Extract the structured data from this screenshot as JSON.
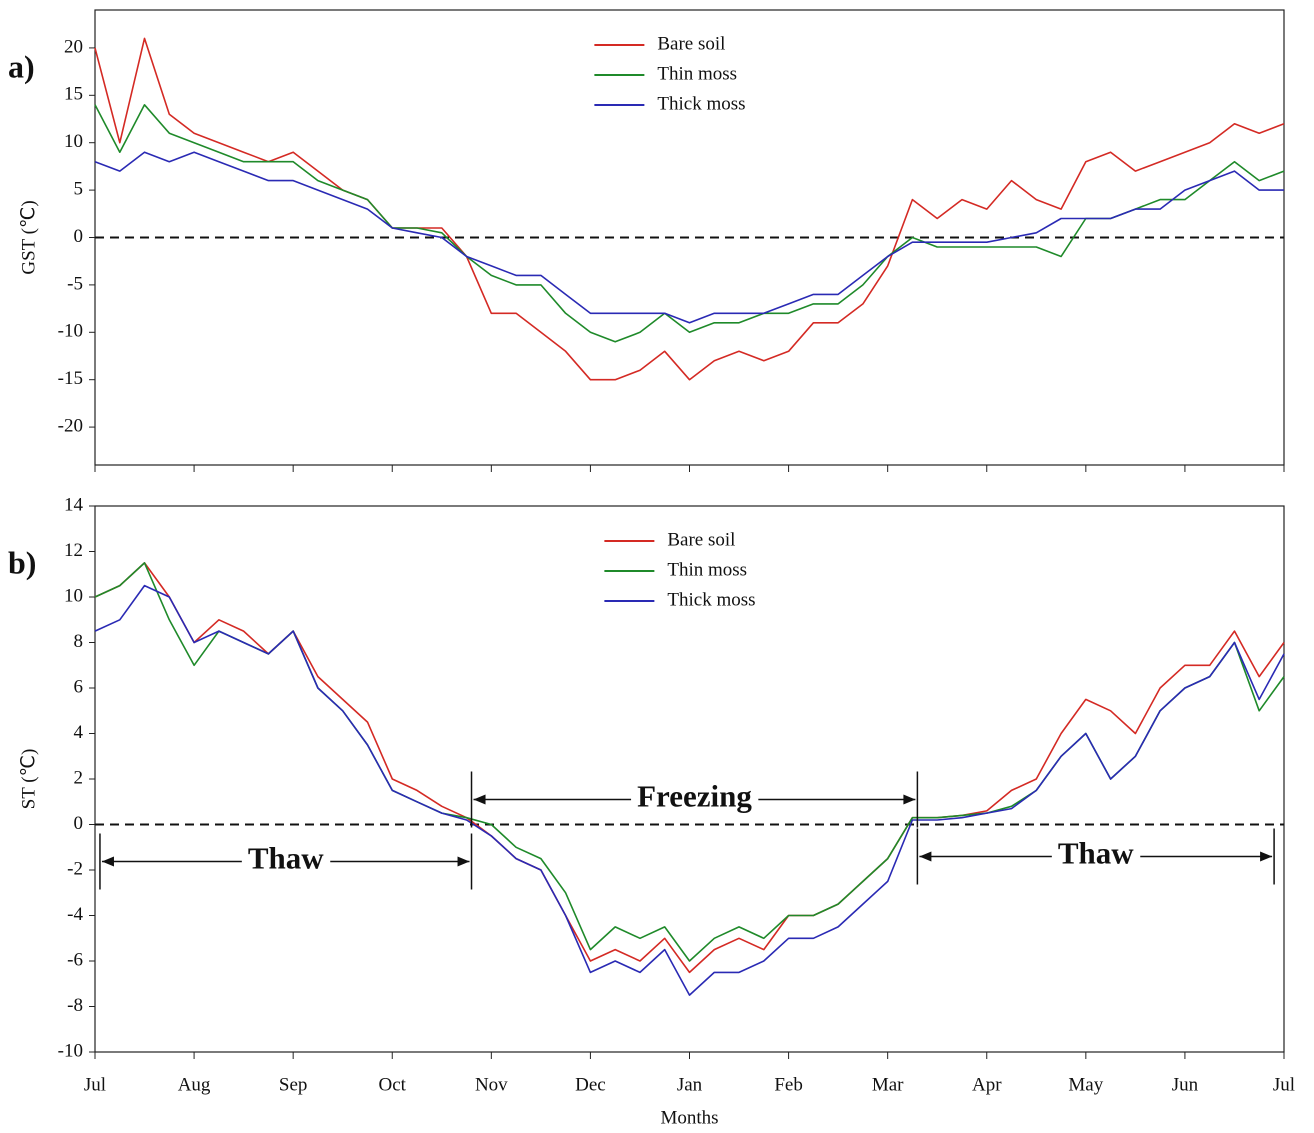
{
  "chart_data": [
    {
      "type": "line",
      "panel_label": "a)",
      "ylabel": "GST (℃)",
      "x": [
        0,
        0.25,
        0.5,
        0.75,
        1,
        1.25,
        1.5,
        1.75,
        2,
        2.25,
        2.5,
        2.75,
        3,
        3.25,
        3.5,
        3.75,
        4,
        4.25,
        4.5,
        4.75,
        5,
        5.25,
        5.5,
        5.75,
        6,
        6.25,
        6.5,
        6.75,
        7,
        7.25,
        7.5,
        7.75,
        8,
        8.25,
        8.5,
        8.75,
        9,
        9.25,
        9.5,
        9.75,
        10,
        10.25,
        10.5,
        10.75,
        11,
        11.25,
        11.5,
        11.75,
        12
      ],
      "xlim": [
        0,
        12
      ],
      "xticks": [
        0,
        1,
        2,
        3,
        4,
        5,
        6,
        7,
        8,
        9,
        10,
        11,
        12
      ],
      "show_xtick_labels": false,
      "ylim": [
        -24,
        24
      ],
      "yticks": [
        -20,
        -15,
        -10,
        -5,
        0,
        5,
        10,
        15,
        20
      ],
      "reference_line": 0,
      "legend_position": "upper center",
      "series": [
        {
          "name": "Bare soil",
          "color": "#d42a24",
          "values": [
            20,
            10,
            21,
            13,
            11,
            10,
            9,
            8,
            9,
            7,
            5,
            4,
            1,
            1,
            1,
            -2,
            -8,
            -8,
            -10,
            -12,
            -15,
            -15,
            -14,
            -12,
            -15,
            -13,
            -12,
            -13,
            -12,
            -9,
            -9,
            -7,
            -3,
            4,
            2,
            4,
            3,
            6,
            4,
            3,
            8,
            9,
            7,
            8,
            9,
            10,
            12,
            11,
            12
          ]
        },
        {
          "name": "Thin moss",
          "color": "#1f8a2a",
          "values": [
            14,
            9,
            14,
            11,
            10,
            9,
            8,
            8,
            8,
            6,
            5,
            4,
            1,
            1,
            0.5,
            -2,
            -4,
            -5,
            -5,
            -8,
            -10,
            -11,
            -10,
            -8,
            -10,
            -9,
            -9,
            -8,
            -8,
            -7,
            -7,
            -5,
            -2,
            0,
            -1,
            -1,
            -1,
            -1,
            -1,
            -2,
            2,
            2,
            3,
            4,
            4,
            6,
            8,
            6,
            7
          ]
        },
        {
          "name": "Thick moss",
          "color": "#2a2ab4",
          "values": [
            8,
            7,
            9,
            8,
            9,
            8,
            7,
            6,
            6,
            5,
            4,
            3,
            1,
            0.5,
            0,
            -2,
            -3,
            -4,
            -4,
            -6,
            -8,
            -8,
            -8,
            -8,
            -9,
            -8,
            -8,
            -8,
            -7,
            -6,
            -6,
            -4,
            -2,
            -0.5,
            -0.5,
            -0.5,
            -0.5,
            0,
            0.5,
            2,
            2,
            2,
            3,
            3,
            5,
            6,
            7,
            5,
            5
          ]
        }
      ]
    },
    {
      "type": "line",
      "panel_label": "b)",
      "ylabel": "ST (℃)",
      "xlabel": "Months",
      "x": [
        0,
        0.25,
        0.5,
        0.75,
        1,
        1.25,
        1.5,
        1.75,
        2,
        2.25,
        2.5,
        2.75,
        3,
        3.25,
        3.5,
        3.75,
        4,
        4.25,
        4.5,
        4.75,
        5,
        5.25,
        5.5,
        5.75,
        6,
        6.25,
        6.5,
        6.75,
        7,
        7.25,
        7.5,
        7.75,
        8,
        8.25,
        8.5,
        8.75,
        9,
        9.25,
        9.5,
        9.75,
        10,
        10.25,
        10.5,
        10.75,
        11,
        11.25,
        11.5,
        11.75,
        12
      ],
      "xlim": [
        0,
        12
      ],
      "xticks": [
        {
          "value": 0,
          "label": "Jul"
        },
        {
          "value": 1,
          "label": "Aug"
        },
        {
          "value": 2,
          "label": "Sep"
        },
        {
          "value": 3,
          "label": "Oct"
        },
        {
          "value": 4,
          "label": "Nov"
        },
        {
          "value": 5,
          "label": "Dec"
        },
        {
          "value": 6,
          "label": "Jan"
        },
        {
          "value": 7,
          "label": "Feb"
        },
        {
          "value": 8,
          "label": "Mar"
        },
        {
          "value": 9,
          "label": "Apr"
        },
        {
          "value": 10,
          "label": "May"
        },
        {
          "value": 11,
          "label": "Jun"
        },
        {
          "value": 12,
          "label": "Jul"
        }
      ],
      "show_xtick_labels": true,
      "ylim": [
        -10,
        14
      ],
      "yticks": [
        -10,
        -8,
        -6,
        -4,
        -2,
        0,
        2,
        4,
        6,
        8,
        10,
        12,
        14
      ],
      "reference_line": 0,
      "legend_position": "upper center",
      "series": [
        {
          "name": "Bare soil",
          "color": "#d42a24",
          "values": [
            10,
            10.5,
            11.5,
            10,
            8,
            9,
            8.5,
            7.5,
            8.5,
            6.5,
            5.5,
            4.5,
            2,
            1.5,
            0.8,
            0.3,
            -0.5,
            -1.5,
            -2,
            -4,
            -6,
            -5.5,
            -6,
            -5,
            -6.5,
            -5.5,
            -5,
            -5.5,
            -4,
            -4,
            -3.5,
            -2.5,
            -1.5,
            0.3,
            0.3,
            0.4,
            0.6,
            1.5,
            2,
            4,
            5.5,
            5,
            4,
            6,
            7,
            7,
            8.5,
            6.5,
            8
          ]
        },
        {
          "name": "Thin moss",
          "color": "#1f8a2a",
          "values": [
            10,
            10.5,
            11.5,
            9,
            7,
            8.5,
            8,
            7.5,
            8.5,
            6,
            5,
            3.5,
            1.5,
            1,
            0.5,
            0.3,
            0,
            -1,
            -1.5,
            -3,
            -5.5,
            -4.5,
            -5,
            -4.5,
            -6,
            -5,
            -4.5,
            -5,
            -4,
            -4,
            -3.5,
            -2.5,
            -1.5,
            0.3,
            0.3,
            0.4,
            0.5,
            0.8,
            1.5,
            3,
            4,
            2,
            3,
            5,
            6,
            6.5,
            8,
            5,
            6.5
          ]
        },
        {
          "name": "Thick moss",
          "color": "#2a2ab4",
          "values": [
            8.5,
            9,
            10.5,
            10,
            8,
            8.5,
            8,
            7.5,
            8.5,
            6,
            5,
            3.5,
            1.5,
            1,
            0.5,
            0.2,
            -0.5,
            -1.5,
            -2,
            -4,
            -6.5,
            -6,
            -6.5,
            -5.5,
            -7.5,
            -6.5,
            -6.5,
            -6,
            -5,
            -5,
            -4.5,
            -3.5,
            -2.5,
            0.2,
            0.2,
            0.3,
            0.5,
            0.7,
            1.5,
            3,
            4,
            2,
            3,
            5,
            6,
            6.5,
            8,
            5.5,
            7.5
          ]
        }
      ],
      "annotations": [
        {
          "text": "Thaw",
          "x_range": [
            0.05,
            3.8
          ]
        },
        {
          "text": "Freezing",
          "x_range": [
            3.8,
            8.3
          ]
        },
        {
          "text": "Thaw",
          "x_range": [
            8.3,
            11.9
          ]
        }
      ]
    }
  ]
}
